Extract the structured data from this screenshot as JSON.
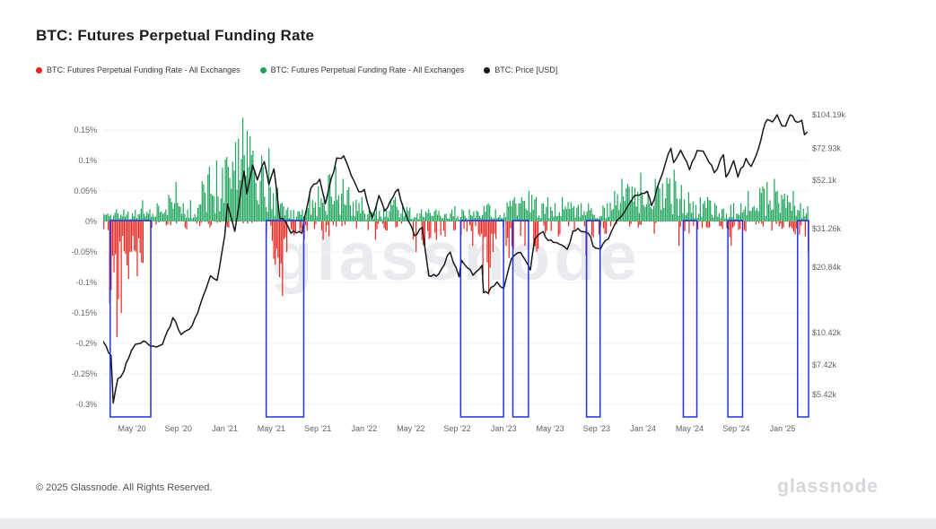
{
  "header": {
    "title": "BTC: Futures Perpetual Funding Rate"
  },
  "legend": [
    {
      "label": "BTC: Futures Perpetual Funding Rate - All Exchanges",
      "color": "#e8251f",
      "marker": "red-dot-icon"
    },
    {
      "label": "BTC: Futures Perpetual Funding Rate - All Exchanges",
      "color": "#1fa45b",
      "marker": "green-dot-icon"
    },
    {
      "label": "BTC: Price [USD]",
      "color": "#15171a",
      "marker": "black-dot-icon"
    }
  ],
  "watermark": "glassnode",
  "footer": {
    "copyright": "© 2025 Glassnode. All Rights Reserved.",
    "brand": "glassnode"
  },
  "chart_data": {
    "type": "mixed",
    "title": "BTC: Futures Perpetual Funding Rate",
    "subtype": "funding-rate bars (positive green / negative red) + BTC price line (log scale) with blue highlight boxes over negative-funding periods",
    "grid": "horizontal, faint",
    "legend_position": "top-left",
    "colors": {
      "positive": "#1fa45b",
      "negative": "#e8251f",
      "price": "#15171a",
      "highlight_box": "#2331e0",
      "grid": "#f0f0f2",
      "axis_text": "#5e646b"
    },
    "x_axis": {
      "ticks": [
        {
          "label": "May '20",
          "date": "2020-05-01"
        },
        {
          "label": "Sep '20",
          "date": "2020-09-01"
        },
        {
          "label": "Jan '21",
          "date": "2021-01-01"
        },
        {
          "label": "May '21",
          "date": "2021-05-01"
        },
        {
          "label": "Sep '21",
          "date": "2021-09-01"
        },
        {
          "label": "Jan '22",
          "date": "2022-01-01"
        },
        {
          "label": "May '22",
          "date": "2022-05-01"
        },
        {
          "label": "Sep '22",
          "date": "2022-09-01"
        },
        {
          "label": "Jan '23",
          "date": "2023-01-01"
        },
        {
          "label": "May '23",
          "date": "2023-05-01"
        },
        {
          "label": "Sep '23",
          "date": "2023-09-01"
        },
        {
          "label": "Jan '24",
          "date": "2024-01-01"
        },
        {
          "label": "May '24",
          "date": "2024-05-01"
        },
        {
          "label": "Sep '24",
          "date": "2024-09-01"
        },
        {
          "label": "Jan '25",
          "date": "2025-01-01"
        }
      ],
      "range": [
        "2020-02-15",
        "2025-03-05"
      ]
    },
    "y_left": {
      "name": "funding rate",
      "unit": "%",
      "range": [
        -0.32,
        0.19
      ],
      "ticks": [
        {
          "label": "0.15%",
          "value": 0.15
        },
        {
          "label": "0.1%",
          "value": 0.1
        },
        {
          "label": "0.05%",
          "value": 0.05
        },
        {
          "label": "0%",
          "value": 0
        },
        {
          "label": "-0.05%",
          "value": -0.05
        },
        {
          "label": "-0.1%",
          "value": -0.1
        },
        {
          "label": "-0.15%",
          "value": -0.15
        },
        {
          "label": "-0.2%",
          "value": -0.2
        },
        {
          "label": "-0.25%",
          "value": -0.25
        },
        {
          "label": "-0.3%",
          "value": -0.3
        }
      ]
    },
    "y_right": {
      "name": "BTC price",
      "unit": "USD",
      "scale": "log",
      "ticks": [
        {
          "label": "$104.19k",
          "value": 104190
        },
        {
          "label": "$72.93k",
          "value": 72930
        },
        {
          "label": "$52.1k",
          "value": 52100
        },
        {
          "label": "$31.26k",
          "value": 31260
        },
        {
          "label": "$20.84k",
          "value": 20840
        },
        {
          "label": "$10.42k",
          "value": 10420
        },
        {
          "label": "$7.42k",
          "value": 7420
        },
        {
          "label": "$5.42k",
          "value": 5420
        }
      ]
    },
    "funding_monthly_max_pct": {
      "comment": "monthly envelope of daily funding-rate bars, read off chart: [month, max positive %, min negative %]",
      "columns": [
        "month",
        "positive_max",
        "negative_min"
      ],
      "rows": [
        [
          "2020-02",
          0.02,
          -0.03
        ],
        [
          "2020-03",
          0.02,
          -0.19
        ],
        [
          "2020-04",
          0.02,
          -0.15
        ],
        [
          "2020-05",
          0.035,
          -0.09
        ],
        [
          "2020-06",
          0.02,
          -0.025
        ],
        [
          "2020-07",
          0.03,
          -0.01
        ],
        [
          "2020-08",
          0.065,
          -0.01
        ],
        [
          "2020-09",
          0.03,
          -0.02
        ],
        [
          "2020-10",
          0.035,
          -0.01
        ],
        [
          "2020-11",
          0.09,
          -0.01
        ],
        [
          "2020-12",
          0.1,
          -0.005
        ],
        [
          "2021-01",
          0.13,
          -0.02
        ],
        [
          "2021-02",
          0.17,
          -0.005
        ],
        [
          "2021-03",
          0.14,
          -0.01
        ],
        [
          "2021-04",
          0.12,
          -0.02
        ],
        [
          "2021-05",
          0.06,
          -0.122
        ],
        [
          "2021-06",
          0.025,
          -0.05
        ],
        [
          "2021-07",
          0.02,
          -0.04
        ],
        [
          "2021-08",
          0.05,
          -0.015
        ],
        [
          "2021-09",
          0.076,
          -0.03
        ],
        [
          "2021-10",
          0.09,
          -0.015
        ],
        [
          "2021-11",
          0.07,
          -0.01
        ],
        [
          "2021-12",
          0.04,
          -0.02
        ],
        [
          "2022-01",
          0.02,
          -0.03
        ],
        [
          "2022-02",
          0.03,
          -0.02
        ],
        [
          "2022-03",
          0.04,
          -0.01
        ],
        [
          "2022-04",
          0.03,
          -0.02
        ],
        [
          "2022-05",
          0.02,
          -0.05
        ],
        [
          "2022-06",
          0.02,
          -0.06
        ],
        [
          "2022-07",
          0.02,
          -0.03
        ],
        [
          "2022-08",
          0.025,
          -0.02
        ],
        [
          "2022-09",
          0.02,
          -0.05
        ],
        [
          "2022-10",
          0.02,
          -0.04
        ],
        [
          "2022-11",
          0.03,
          -0.12
        ],
        [
          "2022-12",
          0.02,
          -0.05
        ],
        [
          "2023-01",
          0.04,
          -0.06
        ],
        [
          "2023-02",
          0.04,
          -0.04
        ],
        [
          "2023-03",
          0.05,
          -0.078
        ],
        [
          "2023-04",
          0.04,
          -0.02
        ],
        [
          "2023-05",
          0.03,
          -0.03
        ],
        [
          "2023-06",
          0.04,
          -0.03
        ],
        [
          "2023-07",
          0.03,
          -0.02
        ],
        [
          "2023-08",
          0.03,
          -0.056
        ],
        [
          "2023-09",
          0.03,
          -0.04
        ],
        [
          "2023-10",
          0.05,
          -0.01
        ],
        [
          "2023-11",
          0.07,
          -0.01
        ],
        [
          "2023-12",
          0.08,
          -0.01
        ],
        [
          "2024-01",
          0.05,
          -0.02
        ],
        [
          "2024-02",
          0.07,
          -0.005
        ],
        [
          "2024-03",
          0.085,
          -0.01
        ],
        [
          "2024-04",
          0.06,
          -0.04
        ],
        [
          "2024-05",
          0.04,
          -0.025
        ],
        [
          "2024-06",
          0.04,
          -0.015
        ],
        [
          "2024-07",
          0.03,
          -0.02
        ],
        [
          "2024-08",
          0.03,
          -0.04
        ],
        [
          "2024-09",
          0.03,
          -0.035
        ],
        [
          "2024-10",
          0.05,
          -0.01
        ],
        [
          "2024-11",
          0.065,
          -0.01
        ],
        [
          "2024-12",
          0.07,
          -0.015
        ],
        [
          "2025-01",
          0.05,
          -0.02
        ],
        [
          "2025-02",
          0.03,
          -0.04
        ],
        [
          "2025-03",
          0.025,
          -0.05
        ]
      ]
    },
    "price_usd": {
      "comment": "BTC price keyframes read off chart (log scale)",
      "columns": [
        "date",
        "price"
      ],
      "rows": [
        [
          "2020-02-15",
          9600
        ],
        [
          "2020-02-25",
          9000
        ],
        [
          "2020-03-07",
          8200
        ],
        [
          "2020-03-13",
          4950
        ],
        [
          "2020-03-25",
          6400
        ],
        [
          "2020-04-10",
          6900
        ],
        [
          "2020-04-30",
          8600
        ],
        [
          "2020-05-10",
          9200
        ],
        [
          "2020-06-01",
          9550
        ],
        [
          "2020-06-27",
          9050
        ],
        [
          "2020-07-20",
          9200
        ],
        [
          "2020-08-17",
          12200
        ],
        [
          "2020-09-08",
          10200
        ],
        [
          "2020-09-30",
          10800
        ],
        [
          "2020-10-21",
          12800
        ],
        [
          "2020-11-06",
          15500
        ],
        [
          "2020-11-24",
          19000
        ],
        [
          "2020-12-11",
          18100
        ],
        [
          "2020-12-31",
          29000
        ],
        [
          "2021-01-08",
          40600
        ],
        [
          "2021-01-27",
          30400
        ],
        [
          "2021-02-21",
          57400
        ],
        [
          "2021-02-28",
          45200
        ],
        [
          "2021-03-13",
          61200
        ],
        [
          "2021-03-25",
          52300
        ],
        [
          "2021-04-13",
          63500
        ],
        [
          "2021-04-25",
          49800
        ],
        [
          "2021-05-08",
          58800
        ],
        [
          "2021-05-23",
          34800
        ],
        [
          "2021-06-08",
          33500
        ],
        [
          "2021-06-22",
          29800
        ],
        [
          "2021-07-20",
          29800
        ],
        [
          "2021-08-13",
          47800
        ],
        [
          "2021-09-06",
          52700
        ],
        [
          "2021-09-21",
          40700
        ],
        [
          "2021-10-20",
          66000
        ],
        [
          "2021-11-08",
          67500
        ],
        [
          "2021-11-28",
          54700
        ],
        [
          "2021-12-17",
          46200
        ],
        [
          "2022-01-01",
          47300
        ],
        [
          "2022-01-22",
          35000
        ],
        [
          "2022-02-09",
          44400
        ],
        [
          "2022-02-24",
          37700
        ],
        [
          "2022-03-29",
          47400
        ],
        [
          "2022-04-11",
          39500
        ],
        [
          "2022-05-11",
          29000
        ],
        [
          "2022-05-31",
          31700
        ],
        [
          "2022-06-18",
          19000
        ],
        [
          "2022-07-13",
          19300
        ],
        [
          "2022-08-13",
          24400
        ],
        [
          "2022-09-06",
          18800
        ],
        [
          "2022-09-12",
          22400
        ],
        [
          "2022-10-12",
          19100
        ],
        [
          "2022-11-05",
          21200
        ],
        [
          "2022-11-09",
          15900
        ],
        [
          "2022-11-21",
          15800
        ],
        [
          "2022-12-14",
          17800
        ],
        [
          "2023-01-01",
          16600
        ],
        [
          "2023-01-21",
          22700
        ],
        [
          "2023-02-15",
          24300
        ],
        [
          "2023-03-10",
          20200
        ],
        [
          "2023-03-22",
          28100
        ],
        [
          "2023-04-13",
          30300
        ],
        [
          "2023-04-26",
          27600
        ],
        [
          "2023-05-17",
          27000
        ],
        [
          "2023-06-15",
          25100
        ],
        [
          "2023-06-30",
          30500
        ],
        [
          "2023-07-13",
          31400
        ],
        [
          "2023-08-16",
          28600
        ],
        [
          "2023-08-22",
          26000
        ],
        [
          "2023-09-11",
          25200
        ],
        [
          "2023-10-01",
          28000
        ],
        [
          "2023-10-24",
          34200
        ],
        [
          "2023-11-15",
          37800
        ],
        [
          "2023-12-08",
          44200
        ],
        [
          "2024-01-11",
          46400
        ],
        [
          "2024-01-23",
          39900
        ],
        [
          "2024-02-14",
          51800
        ],
        [
          "2024-02-29",
          62400
        ],
        [
          "2024-03-13",
          73100
        ],
        [
          "2024-03-20",
          62800
        ],
        [
          "2024-04-08",
          71600
        ],
        [
          "2024-05-01",
          58300
        ],
        [
          "2024-05-21",
          71400
        ],
        [
          "2024-06-06",
          71000
        ],
        [
          "2024-07-05",
          56500
        ],
        [
          "2024-07-29",
          68300
        ],
        [
          "2024-08-05",
          54000
        ],
        [
          "2024-08-25",
          64200
        ],
        [
          "2024-09-06",
          53900
        ],
        [
          "2024-09-27",
          65700
        ],
        [
          "2024-10-10",
          60300
        ],
        [
          "2024-10-29",
          72700
        ],
        [
          "2024-11-11",
          88700
        ],
        [
          "2024-11-22",
          99000
        ],
        [
          "2024-12-05",
          96600
        ],
        [
          "2024-12-17",
          104190
        ],
        [
          "2024-12-30",
          92600
        ],
        [
          "2025-01-09",
          92500
        ],
        [
          "2025-01-21",
          104100
        ],
        [
          "2025-02-03",
          97700
        ],
        [
          "2025-02-21",
          98300
        ],
        [
          "2025-02-28",
          84300
        ],
        [
          "2025-03-05",
          87000
        ]
      ]
    },
    "highlight_boxes": [
      {
        "start": "2020-03-05",
        "end": "2020-06-20"
      },
      {
        "start": "2021-04-18",
        "end": "2021-07-25"
      },
      {
        "start": "2022-09-10",
        "end": "2022-12-31"
      },
      {
        "start": "2023-01-25",
        "end": "2023-03-05"
      },
      {
        "start": "2023-08-05",
        "end": "2023-09-10"
      },
      {
        "start": "2024-04-15",
        "end": "2024-05-20"
      },
      {
        "start": "2024-08-10",
        "end": "2024-09-18"
      },
      {
        "start": "2025-02-10",
        "end": "2025-03-20"
      }
    ]
  }
}
